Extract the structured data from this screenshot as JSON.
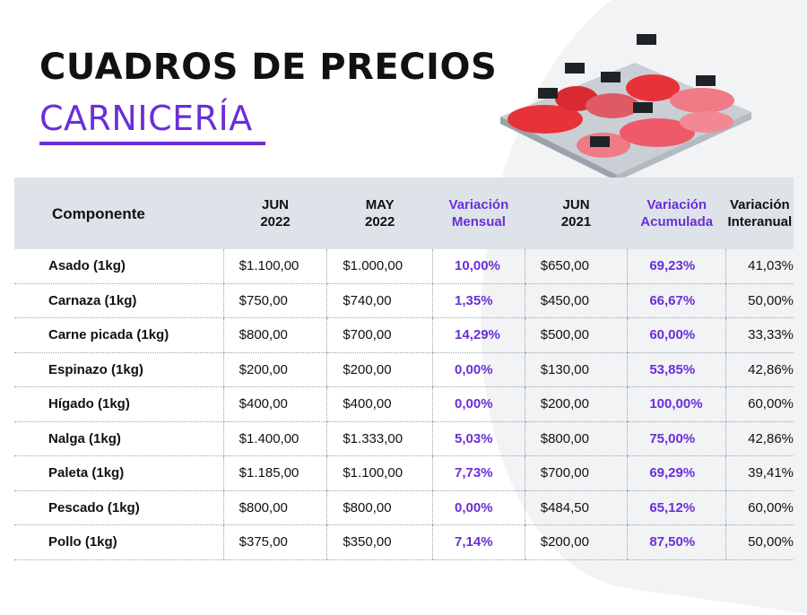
{
  "header": {
    "title": "CUADROS DE PRECIOS",
    "subtitle": "CARNICERÍA"
  },
  "colors": {
    "accent": "#6b2fd6",
    "header_bg": "#dde3e8"
  },
  "illustration": {
    "icon": "meat-display-case-icon"
  },
  "table": {
    "headers": [
      [
        "Componente"
      ],
      [
        "JUN",
        "2022"
      ],
      [
        "MAY",
        "2022"
      ],
      [
        "Variación",
        "Mensual"
      ],
      [
        "JUN",
        "2021"
      ],
      [
        "Variación",
        "Acumulada"
      ],
      [
        "Variación",
        "Interanual"
      ]
    ],
    "rows": [
      [
        "Asado (1kg)",
        "$1.100,00",
        "$1.000,00",
        "10,00%",
        "$650,00",
        "69,23%",
        "41,03%"
      ],
      [
        "Carnaza (1kg)",
        "$750,00",
        "$740,00",
        "1,35%",
        "$450,00",
        "66,67%",
        "50,00%"
      ],
      [
        "Carne picada (1kg)",
        "$800,00",
        "$700,00",
        "14,29%",
        "$500,00",
        "60,00%",
        "33,33%"
      ],
      [
        "Espinazo (1kg)",
        "$200,00",
        "$200,00",
        "0,00%",
        "$130,00",
        "53,85%",
        "42,86%"
      ],
      [
        "Hígado (1kg)",
        "$400,00",
        "$400,00",
        "0,00%",
        "$200,00",
        "100,00%",
        "60,00%"
      ],
      [
        "Nalga (1kg)",
        "$1.400,00",
        "$1.333,00",
        "5,03%",
        "$800,00",
        "75,00%",
        "42,86%"
      ],
      [
        "Paleta (1kg)",
        "$1.185,00",
        "$1.100,00",
        "7,73%",
        "$700,00",
        "69,29%",
        "39,41%"
      ],
      [
        "Pescado (1kg)",
        "$800,00",
        "$800,00",
        "0,00%",
        "$484,50",
        "65,12%",
        "60,00%"
      ],
      [
        "Pollo (1kg)",
        "$375,00",
        "$350,00",
        "7,14%",
        "$200,00",
        "87,50%",
        "50,00%"
      ]
    ]
  }
}
